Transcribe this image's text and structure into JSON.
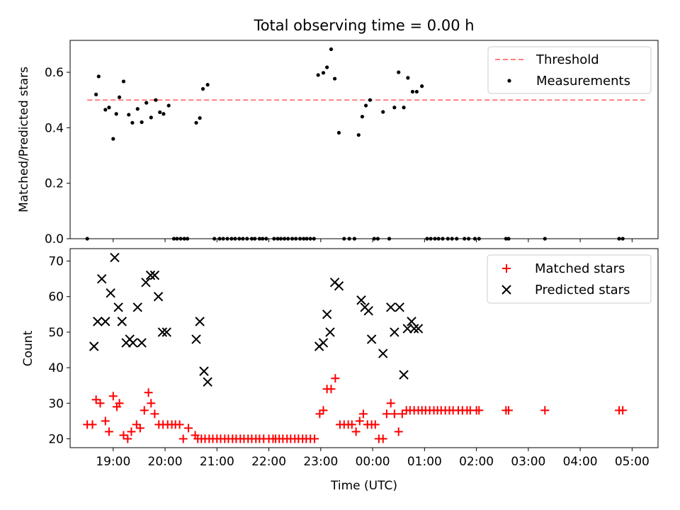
{
  "chart_data": [
    {
      "type": "scatter",
      "title": "Total observing time = 0.00 h",
      "xlabel": "",
      "ylabel": "Matched/Predicted stars",
      "xlim": [
        18.17,
        29.5
      ],
      "ylim": [
        0,
        0.715
      ],
      "xticks": [
        {
          "value": 19,
          "label": ""
        },
        {
          "value": 20,
          "label": ""
        },
        {
          "value": 21,
          "label": ""
        },
        {
          "value": 22,
          "label": ""
        },
        {
          "value": 23,
          "label": ""
        },
        {
          "value": 24,
          "label": ""
        },
        {
          "value": 25,
          "label": ""
        },
        {
          "value": 26,
          "label": ""
        },
        {
          "value": 27,
          "label": ""
        },
        {
          "value": 28,
          "label": ""
        },
        {
          "value": 29,
          "label": ""
        }
      ],
      "yticks": [
        {
          "value": 0.0,
          "label": "0.0"
        },
        {
          "value": 0.2,
          "label": "0.2"
        },
        {
          "value": 0.4,
          "label": "0.4"
        },
        {
          "value": 0.6,
          "label": "0.6"
        }
      ],
      "threshold": {
        "name": "Threshold",
        "y": 0.5,
        "x": [
          18.5,
          29.25
        ],
        "color": "#ff7f7f"
      },
      "legend_position": "top-right",
      "series": [
        {
          "name": "Measurements",
          "marker": "dot",
          "color": "#000000",
          "x": [
            18.5,
            18.67,
            18.72,
            18.85,
            18.92,
            19.0,
            19.06,
            19.12,
            19.2,
            19.3,
            19.37,
            19.47,
            19.55,
            19.64,
            19.73,
            19.82,
            19.9,
            19.97,
            20.07,
            20.17,
            20.23,
            20.3,
            20.37,
            20.43,
            20.6,
            20.67,
            20.73,
            20.82,
            20.95,
            21.05,
            21.12,
            21.2,
            21.28,
            21.35,
            21.43,
            21.5,
            21.58,
            21.67,
            21.73,
            21.82,
            21.88,
            21.95,
            22.1,
            22.17,
            22.23,
            22.3,
            22.37,
            22.45,
            22.52,
            22.6,
            22.67,
            22.73,
            22.8,
            22.87,
            22.95,
            23.05,
            23.12,
            23.2,
            23.27,
            23.35,
            23.45,
            23.55,
            23.65,
            23.73,
            23.8,
            23.87,
            23.95,
            24.03,
            24.1,
            24.2,
            24.32,
            24.42,
            24.5,
            24.6,
            24.68,
            24.77,
            24.85,
            24.95,
            25.05,
            25.12,
            25.2,
            25.27,
            25.35,
            25.45,
            25.53,
            25.62,
            25.77,
            25.85,
            25.97,
            26.05,
            26.57,
            26.62,
            27.32,
            28.75,
            28.82
          ],
          "y": [
            0.0,
            0.52,
            0.585,
            0.465,
            0.473,
            0.36,
            0.45,
            0.51,
            0.567,
            0.447,
            0.418,
            0.468,
            0.42,
            0.49,
            0.437,
            0.5,
            0.456,
            0.45,
            0.48,
            0.0,
            0.0,
            0.0,
            0.0,
            0.0,
            0.418,
            0.435,
            0.54,
            0.555,
            0.0,
            0.0,
            0.0,
            0.0,
            0.0,
            0.0,
            0.0,
            0.0,
            0.0,
            0.0,
            0.0,
            0.0,
            0.0,
            0.0,
            0.0,
            0.0,
            0.0,
            0.0,
            0.0,
            0.0,
            0.0,
            0.0,
            0.0,
            0.0,
            0.0,
            0.0,
            0.59,
            0.598,
            0.618,
            0.683,
            0.577,
            0.382,
            0.0,
            0.0,
            0.0,
            0.374,
            0.44,
            0.48,
            0.5,
            0.0,
            0.0,
            0.457,
            0.0,
            0.473,
            0.6,
            0.473,
            0.58,
            0.53,
            0.53,
            0.55,
            0.0,
            0.0,
            0.0,
            0.0,
            0.0,
            0.0,
            0.0,
            0.0,
            0.0,
            0.0,
            0.0,
            0.0,
            0.0,
            0.0,
            0.0,
            0.0,
            0.0
          ]
        }
      ]
    },
    {
      "type": "scatter",
      "title": "",
      "xlabel": "Time (UTC)",
      "ylabel": "Count",
      "xlim": [
        18.17,
        29.5
      ],
      "ylim": [
        17.5,
        73.5
      ],
      "xticks": [
        {
          "value": 19,
          "label": "19:00"
        },
        {
          "value": 20,
          "label": "20:00"
        },
        {
          "value": 21,
          "label": "21:00"
        },
        {
          "value": 22,
          "label": "22:00"
        },
        {
          "value": 23,
          "label": "23:00"
        },
        {
          "value": 24,
          "label": "00:00"
        },
        {
          "value": 25,
          "label": "01:00"
        },
        {
          "value": 26,
          "label": "02:00"
        },
        {
          "value": 27,
          "label": "03:00"
        },
        {
          "value": 28,
          "label": "04:00"
        },
        {
          "value": 29,
          "label": "05:00"
        }
      ],
      "yticks": [
        {
          "value": 20,
          "label": "20"
        },
        {
          "value": 30,
          "label": "30"
        },
        {
          "value": 40,
          "label": "40"
        },
        {
          "value": 50,
          "label": "50"
        },
        {
          "value": 60,
          "label": "60"
        },
        {
          "value": 70,
          "label": "70"
        }
      ],
      "legend_position": "top-right",
      "series": [
        {
          "name": "Matched stars",
          "marker": "plus",
          "color": "#ff0000",
          "x": [
            18.5,
            18.6,
            18.67,
            18.75,
            18.85,
            18.92,
            19.0,
            19.07,
            19.12,
            19.2,
            19.28,
            19.35,
            19.45,
            19.52,
            19.6,
            19.68,
            19.73,
            19.8,
            19.88,
            19.96,
            20.05,
            20.13,
            20.2,
            20.28,
            20.35,
            20.45,
            20.58,
            20.63,
            20.7,
            20.77,
            20.85,
            20.92,
            21.0,
            21.07,
            21.15,
            21.22,
            21.3,
            21.37,
            21.45,
            21.52,
            21.6,
            21.67,
            21.75,
            21.82,
            21.9,
            22.0,
            22.08,
            22.13,
            22.2,
            22.27,
            22.35,
            22.42,
            22.5,
            22.57,
            22.65,
            22.72,
            22.8,
            22.88,
            22.98,
            23.05,
            23.12,
            23.2,
            23.28,
            23.37,
            23.45,
            23.53,
            23.6,
            23.68,
            23.75,
            23.82,
            23.9,
            23.98,
            24.05,
            24.12,
            24.2,
            24.27,
            24.35,
            24.42,
            24.5,
            24.57,
            24.65,
            24.72,
            24.8,
            24.88,
            24.95,
            25.02,
            25.1,
            25.18,
            25.25,
            25.32,
            25.4,
            25.48,
            25.55,
            25.65,
            25.73,
            25.82,
            25.88,
            26.0,
            26.05,
            26.57,
            26.62,
            27.32,
            28.75,
            28.82
          ],
          "y": [
            24,
            24,
            31,
            30,
            25,
            22,
            32,
            29,
            30,
            21,
            20,
            22,
            24,
            23,
            28,
            33,
            30,
            27,
            24,
            24,
            24,
            24,
            24,
            24,
            20,
            23,
            21,
            20,
            20,
            20,
            20,
            20,
            20,
            20,
            20,
            20,
            20,
            20,
            20,
            20,
            20,
            20,
            20,
            20,
            20,
            20,
            20,
            20,
            20,
            20,
            20,
            20,
            20,
            20,
            20,
            20,
            20,
            20,
            27,
            28,
            34,
            34,
            37,
            24,
            24,
            24,
            24,
            22,
            25,
            27,
            24,
            24,
            24,
            20,
            20,
            27,
            30,
            27,
            22,
            27,
            28,
            28,
            28,
            28,
            28,
            28,
            28,
            28,
            28,
            28,
            28,
            28,
            28,
            28,
            28,
            28,
            28,
            28,
            28,
            28,
            28,
            28,
            28,
            28
          ]
        },
        {
          "name": "Predicted stars",
          "marker": "x",
          "color": "#000000",
          "x": [
            18.63,
            18.7,
            18.78,
            18.85,
            18.95,
            19.03,
            19.1,
            19.17,
            19.25,
            19.32,
            19.38,
            19.47,
            19.55,
            19.63,
            19.72,
            19.8,
            19.87,
            19.95,
            20.03,
            20.6,
            20.67,
            20.75,
            20.82,
            22.97,
            23.05,
            23.12,
            23.18,
            23.27,
            23.35,
            23.78,
            23.85,
            23.92,
            23.98,
            24.2,
            24.35,
            24.42,
            24.52,
            24.6,
            24.67,
            24.75,
            24.8,
            24.88
          ],
          "y": [
            46,
            53,
            65,
            53,
            61,
            71,
            57,
            53,
            47,
            48,
            47,
            57,
            47,
            64,
            66,
            66,
            60,
            50,
            50,
            48,
            53,
            39,
            36,
            46,
            47,
            55,
            50,
            64,
            63,
            59,
            57,
            56,
            48,
            44,
            57,
            50,
            57,
            38,
            51,
            53,
            51,
            51
          ]
        }
      ]
    }
  ]
}
